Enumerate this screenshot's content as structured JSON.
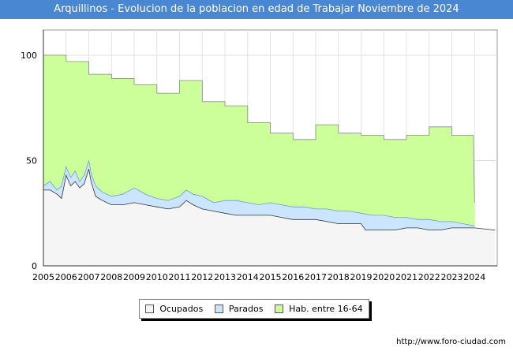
{
  "chart_data": {
    "type": "area",
    "title": "Arquillinos - Evolucion de la poblacion en edad de Trabajar Noviembre de 2024",
    "xlabel": "",
    "ylabel": "",
    "ylim": [
      0,
      112
    ],
    "xlim": [
      2005,
      2025
    ],
    "y_ticks": [
      0,
      50,
      100
    ],
    "x_ticks": [
      2005,
      2006,
      2007,
      2008,
      2009,
      2010,
      2011,
      2012,
      2013,
      2014,
      2015,
      2016,
      2017,
      2018,
      2019,
      2020,
      2021,
      2022,
      2023,
      2024
    ],
    "grid": true,
    "legend_position": "bottom",
    "series": [
      {
        "name": "Hab. entre 16-64",
        "color": "#ccff99",
        "x": [
          2005,
          2006,
          2006,
          2007,
          2007,
          2008,
          2008,
          2009,
          2009,
          2010,
          2010,
          2011,
          2011,
          2012,
          2012,
          2013,
          2013,
          2014,
          2014,
          2015,
          2015,
          2016,
          2016,
          2017,
          2017,
          2018,
          2018,
          2019,
          2019,
          2020,
          2020,
          2021,
          2021,
          2022,
          2022,
          2023,
          2023,
          2023.95,
          2024
        ],
        "values": [
          100,
          100,
          97,
          97,
          91,
          91,
          89,
          89,
          86,
          86,
          82,
          82,
          88,
          88,
          78,
          78,
          76,
          76,
          68,
          68,
          63,
          63,
          60,
          60,
          67,
          67,
          63,
          63,
          62,
          62,
          60,
          60,
          62,
          62,
          66,
          66,
          62,
          62,
          30
        ]
      },
      {
        "name": "Parados",
        "color": "#cce5ff",
        "x": [
          2005,
          2005.3,
          2005.6,
          2005.8,
          2006,
          2006.2,
          2006.4,
          2006.6,
          2006.8,
          2007,
          2007.1,
          2007.3,
          2007.6,
          2008,
          2008.5,
          2009,
          2009.5,
          2010,
          2010.5,
          2011,
          2011.3,
          2011.6,
          2012,
          2012.5,
          2013,
          2013.5,
          2014,
          2014.5,
          2015,
          2015.5,
          2016,
          2016.5,
          2017,
          2017.5,
          2018,
          2018.5,
          2019,
          2019.5,
          2020,
          2020.5,
          2021,
          2021.5,
          2022,
          2022.5,
          2023,
          2023.5,
          2024
        ],
        "values": [
          38,
          40,
          36,
          38,
          47,
          42,
          45,
          40,
          43,
          50,
          44,
          38,
          35,
          33,
          34,
          37,
          34,
          32,
          31,
          33,
          36,
          34,
          33,
          30,
          31,
          31,
          30,
          29,
          30,
          29,
          28,
          28,
          27,
          27,
          26,
          26,
          25,
          24,
          24,
          23,
          23,
          22,
          22,
          21,
          21,
          20,
          19
        ]
      },
      {
        "name": "Ocupados",
        "color": "#f5f5f5",
        "x": [
          2005,
          2005.3,
          2005.6,
          2005.8,
          2006,
          2006.2,
          2006.4,
          2006.6,
          2006.8,
          2007,
          2007.1,
          2007.3,
          2007.6,
          2008,
          2008.5,
          2009,
          2009.5,
          2010,
          2010.5,
          2011,
          2011.3,
          2011.6,
          2012,
          2012.5,
          2013,
          2013.5,
          2014,
          2014.5,
          2015,
          2015.5,
          2016,
          2016.5,
          2017,
          2017.5,
          2018,
          2018.5,
          2019,
          2019.2,
          2019.5,
          2020,
          2020.5,
          2021,
          2021.5,
          2022,
          2022.5,
          2023,
          2023.5,
          2024,
          2024.9
        ],
        "values": [
          36,
          36,
          34,
          32,
          43,
          38,
          40,
          37,
          39,
          46,
          40,
          33,
          31,
          29,
          29,
          30,
          29,
          28,
          27,
          28,
          31,
          29,
          27,
          26,
          25,
          24,
          24,
          24,
          24,
          23,
          22,
          22,
          22,
          21,
          20,
          20,
          20,
          17,
          17,
          17,
          17,
          18,
          18,
          17,
          17,
          18,
          18,
          18,
          17
        ]
      }
    ],
    "legend": [
      "Ocupados",
      "Parados",
      "Hab. entre 16-64"
    ]
  },
  "colors": {
    "title_bar": "#4a87d2",
    "ocupados_line": "#333333",
    "parados_line": "#6a9fd8",
    "hab_line": "#888888"
  },
  "source": "http://www.foro-ciudad.com"
}
